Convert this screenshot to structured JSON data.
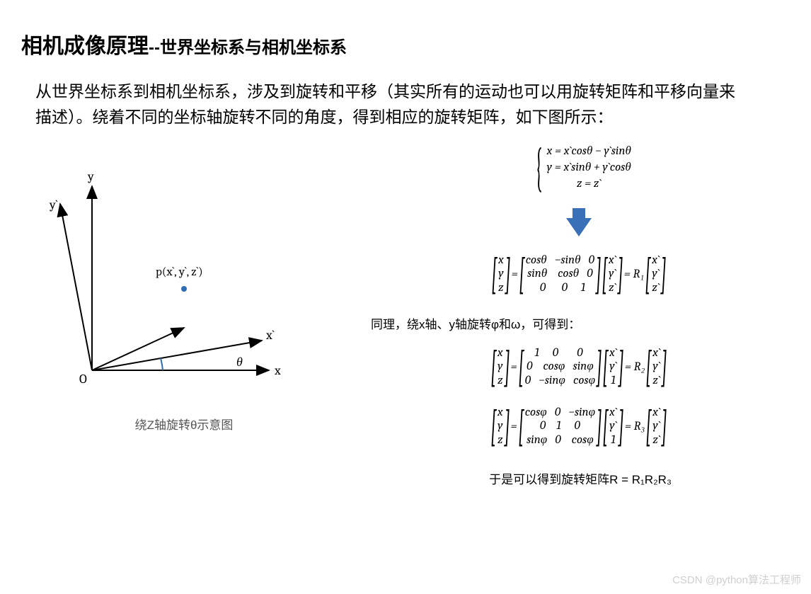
{
  "title": {
    "bold": "相机成像原理",
    "sep": "--",
    "sub": "世界坐标系与相机坐标系"
  },
  "intro": "从世界坐标系到相机坐标系，涉及到旋转和平移（其实所有的运动也可以用旋转矩阵和平移向量来描述）。绕着不同的坐标轴旋转不同的角度，得到相应的旋转矩阵，如下图所示：",
  "diagram": {
    "labels": {
      "O": "O",
      "x": "x",
      "xp": "x`",
      "y": "y",
      "yp": "y`",
      "theta": "θ",
      "point": "p(x`, y`, z`)"
    },
    "caption": "绕Z轴旋转θ示意图",
    "colors": {
      "axes": "#000000",
      "angle_arc": "#2d6db3",
      "point": "#2d6db3"
    }
  },
  "equations": {
    "system": {
      "l1": "x = x`cosθ − y`sinθ",
      "l2": "y = x`sinθ + y`cosθ",
      "l3": "z = z`"
    },
    "arrow_color": "#3970b7",
    "m1": {
      "lhs": [
        "x",
        "y",
        "z"
      ],
      "mat": [
        [
          "cosθ",
          "−sinθ",
          "0"
        ],
        [
          "sinθ",
          "cosθ",
          "0"
        ],
        [
          "0",
          "0",
          "1"
        ]
      ],
      "rhs1": [
        "x`",
        "y`",
        "z`"
      ],
      "rlabel": "= R₁",
      "rhs2": [
        "x`",
        "y`",
        "z`"
      ]
    },
    "desc": "同理，绕x轴、y轴旋转φ和ω，可得到：",
    "m2": {
      "lhs": [
        "x",
        "y",
        "z"
      ],
      "mat": [
        [
          "1",
          "0",
          "0"
        ],
        [
          "0",
          "cosφ",
          "sinφ"
        ],
        [
          "0",
          "−sinφ",
          "cosφ"
        ]
      ],
      "rhs1": [
        "x`",
        "y`",
        "1"
      ],
      "rlabel": "= R₂",
      "rhs2": [
        "x`",
        "y`",
        "z`"
      ]
    },
    "m3": {
      "lhs": [
        "x",
        "y",
        "z"
      ],
      "mat": [
        [
          "cosφ",
          "0",
          "−sinφ"
        ],
        [
          "0",
          "1",
          "0"
        ],
        [
          "sinφ",
          "0",
          "cosφ"
        ]
      ],
      "rhs1": [
        "x`",
        "y`",
        "1"
      ],
      "rlabel": "= R₃",
      "rhs2": [
        "x`",
        "y`",
        "z`"
      ]
    },
    "final": "于是可以得到旋转矩阵R = R₁R₂R₃"
  },
  "watermark": "CSDN @python算法工程师"
}
